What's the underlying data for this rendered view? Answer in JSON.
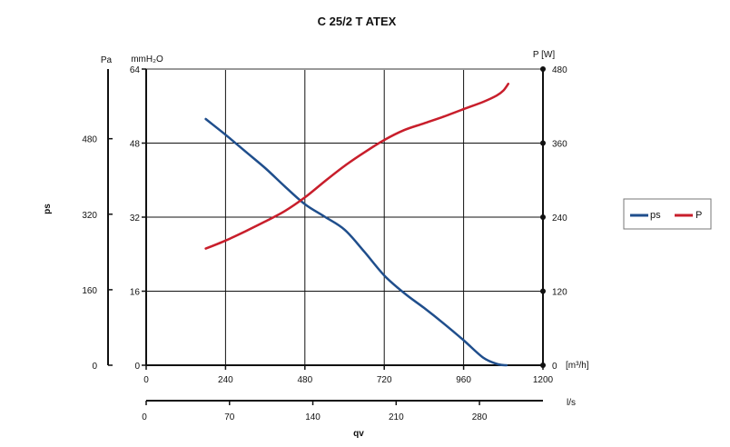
{
  "chart_data": {
    "type": "line",
    "title": "C 25/2 T ATEX",
    "xlabel": "qv",
    "x_units_primary": "[m³/h]",
    "x_units_secondary": "l/s",
    "y_left_outer_label": "ps",
    "y_left_outer_unit": "Pa",
    "y_left_inner_unit": "mmH₂O",
    "y_right_unit": "P [W]",
    "xlim": [
      0,
      1200
    ],
    "x_ticks_m3h": [
      "0",
      "240",
      "480",
      "720",
      "960",
      "1200"
    ],
    "x_ticks_ls": [
      "0",
      "70",
      "140",
      "210",
      "280"
    ],
    "x_ticks_ls_values": [
      0,
      70,
      140,
      210,
      280
    ],
    "ylim_mmH2O": [
      0,
      64
    ],
    "y_ticks_mmH2O": [
      "0",
      "16",
      "32",
      "48",
      "64"
    ],
    "y_ticks_Pa": [
      "0",
      "160",
      "320",
      "480"
    ],
    "y_ticks_Pa_values": [
      0,
      160,
      320,
      480
    ],
    "ylim_W": [
      0,
      480
    ],
    "y_ticks_W": [
      "0",
      "120",
      "240",
      "360",
      "480"
    ],
    "grid": true,
    "legend_position": "right",
    "series": [
      {
        "name": "ps",
        "axis": "left",
        "color": "#1f4e8c",
        "x": [
          180,
          240,
          300,
          360,
          420,
          480,
          540,
          600,
          660,
          720,
          780,
          840,
          900,
          960,
          1020,
          1065,
          1090
        ],
        "y": [
          53.2,
          49.8,
          46.2,
          42.6,
          38.6,
          34.8,
          32.1,
          29.3,
          24.5,
          19.4,
          15.6,
          12.4,
          9.0,
          5.4,
          1.6,
          0.2,
          0
        ]
      },
      {
        "name": "P",
        "axis": "right",
        "color": "#c81e2b",
        "x": [
          180,
          240,
          300,
          360,
          420,
          480,
          540,
          600,
          660,
          720,
          780,
          840,
          900,
          960,
          1020,
          1060,
          1080,
          1095
        ],
        "y": [
          189,
          202,
          217,
          233,
          250,
          272,
          298,
          323,
          345,
          365,
          381,
          392,
          403,
          415,
          427,
          437,
          445,
          456
        ]
      }
    ]
  }
}
